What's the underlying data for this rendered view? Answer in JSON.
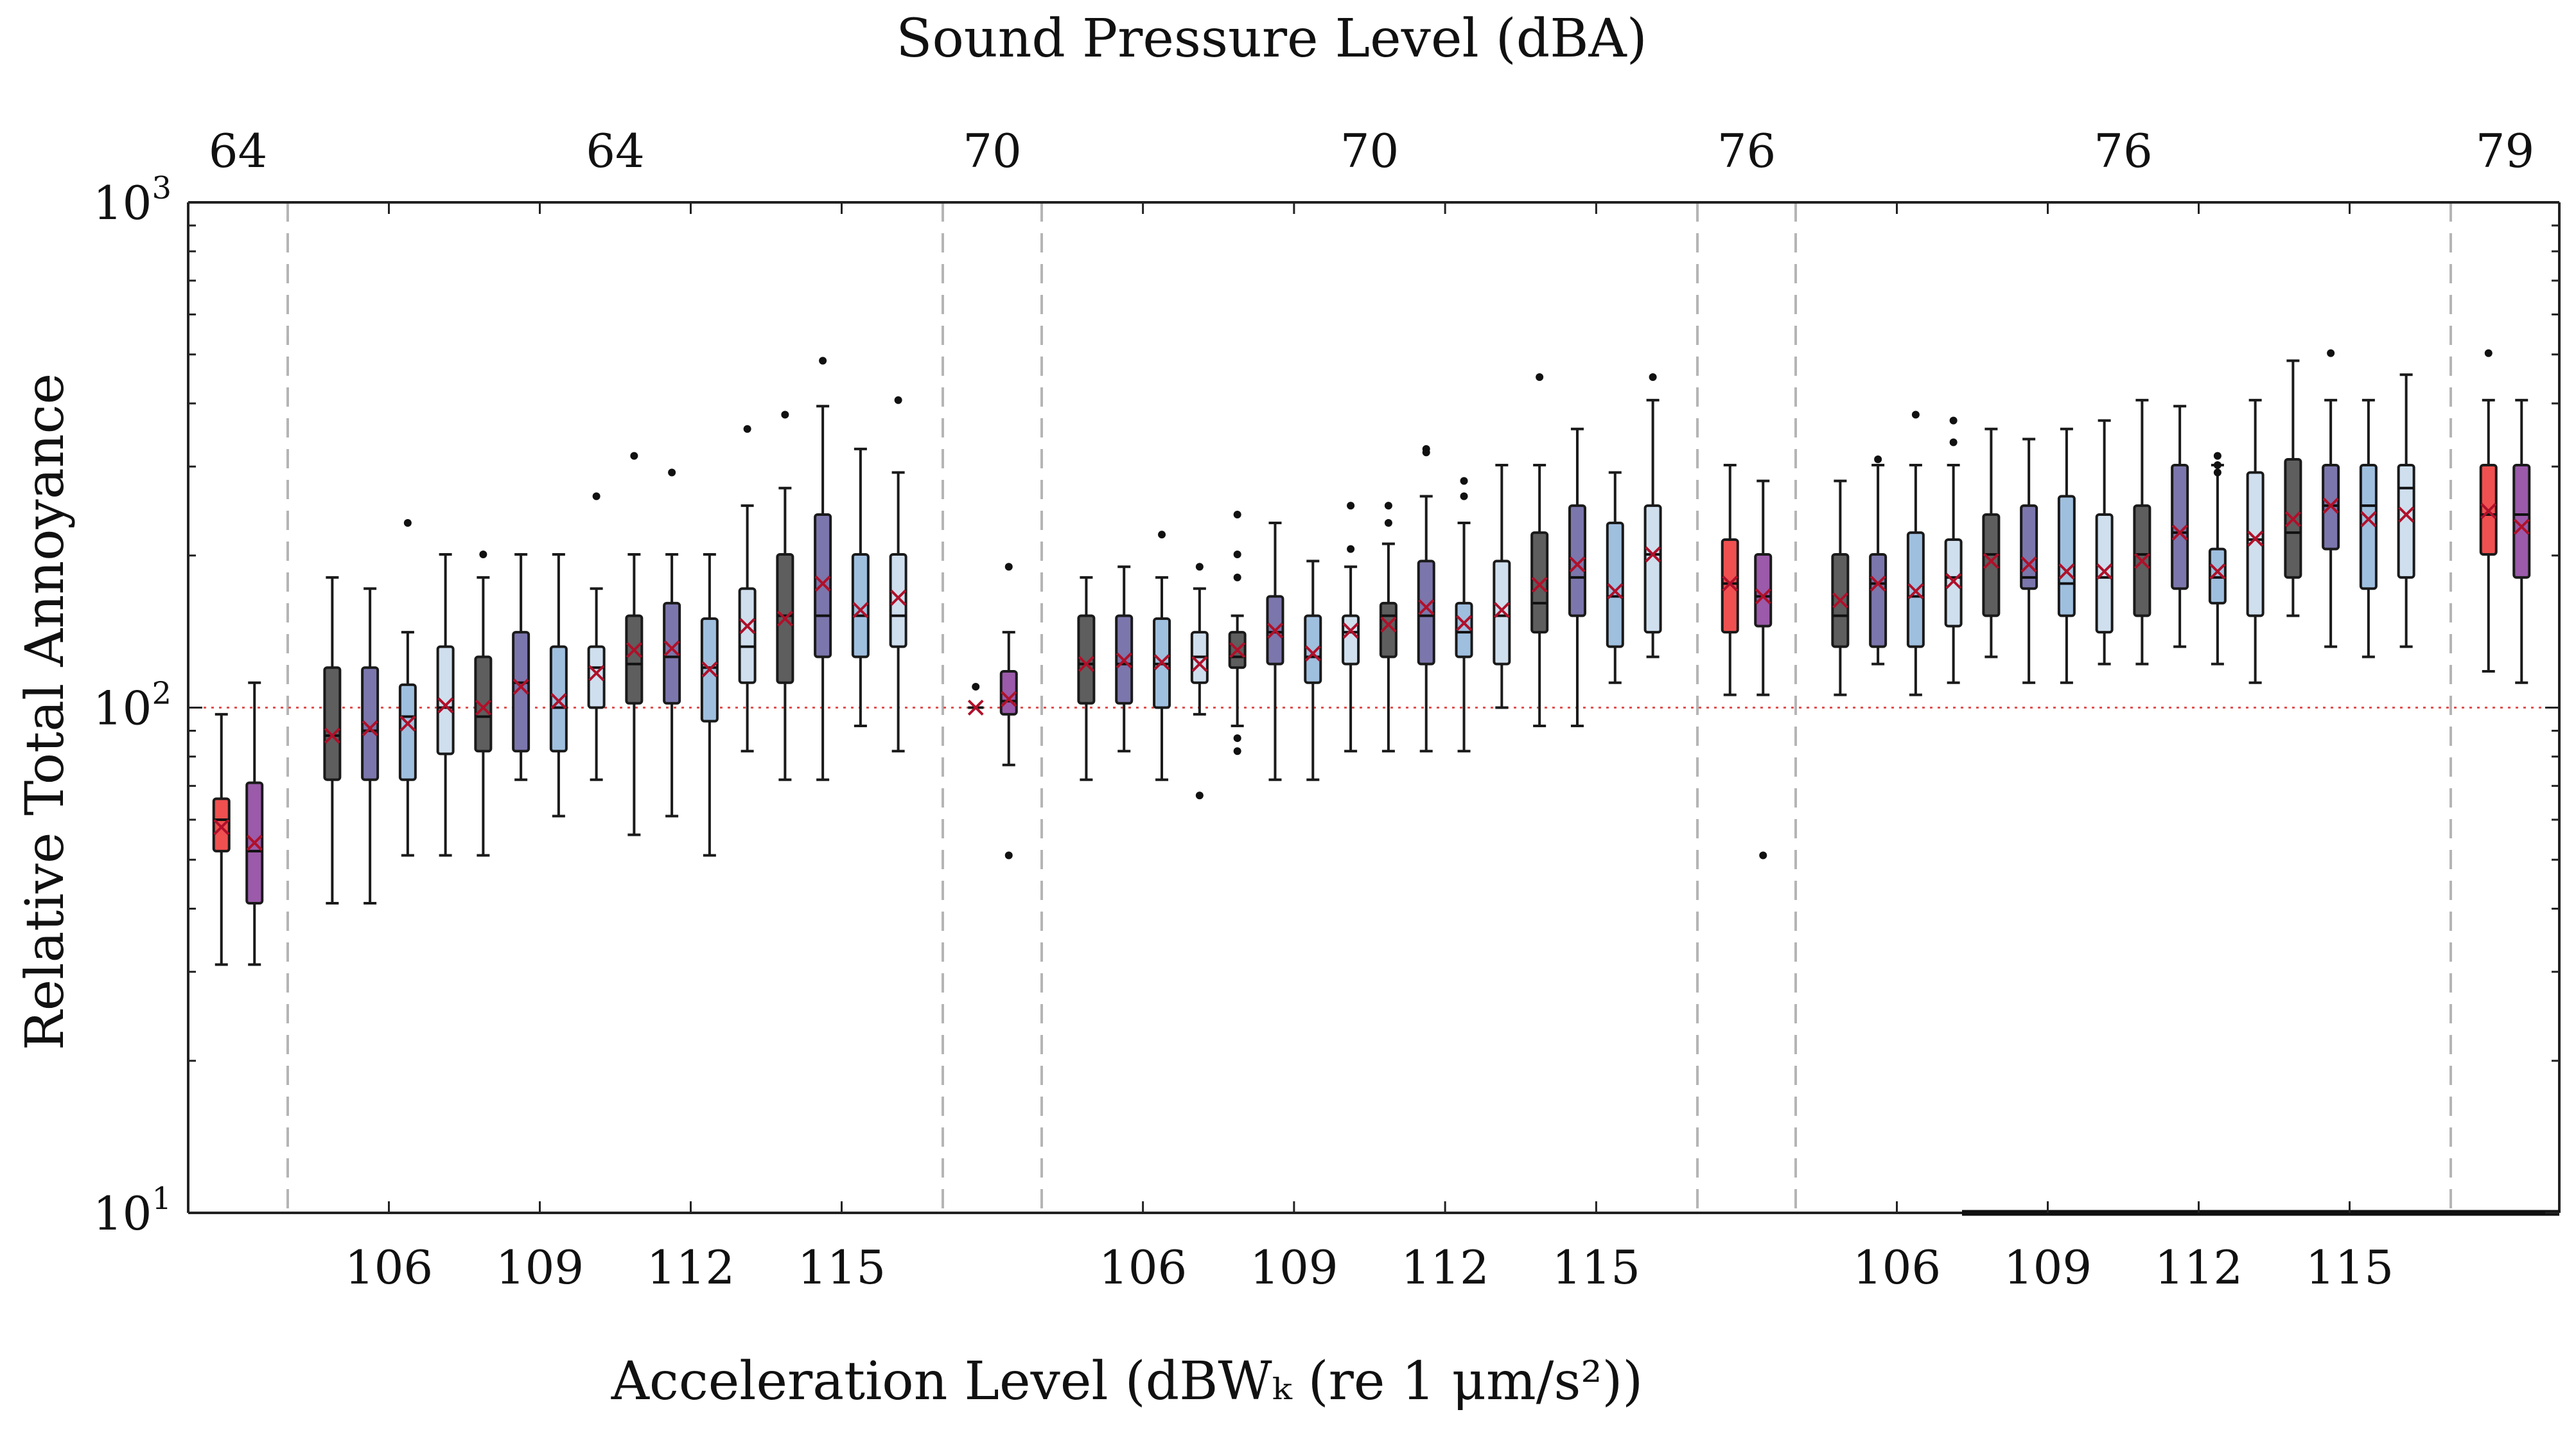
{
  "chart_data": {
    "type": "box",
    "title": "Sound Pressure Level (dBA)",
    "xlabel": "Acceleration Level (dBWₖ (re 1 μm/s²))",
    "ylabel": "Relative Total Annoyance",
    "yscale": "log",
    "ylim": [
      10,
      1000
    ],
    "reference_value": 100,
    "yticks": [
      {
        "base": "10",
        "exp": "1"
      },
      {
        "base": "10",
        "exp": "2"
      },
      {
        "base": "10",
        "exp": "3"
      }
    ],
    "colors": {
      "red": "#f05050",
      "purple": "#9b5aaa",
      "dark_gray": "#5e5e5e",
      "slate": "#7b76ac",
      "light_blue": "#9fbfdf",
      "pale_blue": "#cfdfee",
      "mean_marker": "#b0102a",
      "reference_line": "#e05050"
    },
    "panels": [
      {
        "spl": "64",
        "kind": "noise_only",
        "slots": 2
      },
      {
        "spl": "64",
        "kind": "combined",
        "slots": 16,
        "vib_levels": [
          "106",
          "109",
          "112",
          "115"
        ]
      },
      {
        "spl": "70",
        "kind": "noise_only",
        "slots": 2
      },
      {
        "spl": "70",
        "kind": "combined",
        "slots": 16,
        "vib_levels": [
          "106",
          "109",
          "112",
          "115"
        ]
      },
      {
        "spl": "76",
        "kind": "noise_only",
        "slots": 2
      },
      {
        "spl": "76",
        "kind": "combined",
        "slots": 16,
        "vib_levels": [
          "106",
          "109",
          "112",
          "115"
        ]
      },
      {
        "spl": "79",
        "kind": "noise_only",
        "slots": 2
      }
    ],
    "boxes": [
      {
        "panel": 0,
        "slot": 0,
        "color": "red",
        "min": 31,
        "q1": 52,
        "median": 60,
        "q3": 66,
        "max": 97,
        "mean": 58
      },
      {
        "panel": 0,
        "slot": 1,
        "color": "purple",
        "min": 31,
        "q1": 41,
        "median": 52,
        "q3": 71,
        "max": 112,
        "mean": 54
      },
      {
        "panel": 1,
        "slot": 0,
        "color": "dark_gray",
        "min": 41,
        "q1": 72,
        "median": 88,
        "q3": 120,
        "max": 181,
        "mean": 88
      },
      {
        "panel": 1,
        "slot": 1,
        "color": "slate",
        "min": 41,
        "q1": 72,
        "median": 90,
        "q3": 120,
        "max": 172,
        "mean": 91
      },
      {
        "panel": 1,
        "slot": 2,
        "color": "light_blue",
        "min": 51,
        "q1": 72,
        "median": 96,
        "q3": 111,
        "max": 141,
        "mean": 93,
        "outliers": [
          232
        ]
      },
      {
        "panel": 1,
        "slot": 3,
        "color": "pale_blue",
        "min": 51,
        "q1": 81,
        "median": 100,
        "q3": 132,
        "max": 201,
        "mean": 101
      },
      {
        "panel": 1,
        "slot": 4,
        "color": "dark_gray",
        "min": 51,
        "q1": 82,
        "median": 96,
        "q3": 126,
        "max": 181,
        "mean": 100,
        "outliers": [
          201
        ]
      },
      {
        "panel": 1,
        "slot": 5,
        "color": "slate",
        "min": 72,
        "q1": 82,
        "median": 112,
        "q3": 141,
        "max": 201,
        "mean": 110
      },
      {
        "panel": 1,
        "slot": 6,
        "color": "light_blue",
        "min": 61,
        "q1": 82,
        "median": 100,
        "q3": 132,
        "max": 201,
        "mean": 103
      },
      {
        "panel": 1,
        "slot": 7,
        "color": "pale_blue",
        "min": 72,
        "q1": 100,
        "median": 120,
        "q3": 132,
        "max": 172,
        "mean": 117,
        "outliers": [
          262
        ]
      },
      {
        "panel": 1,
        "slot": 8,
        "color": "dark_gray",
        "min": 56,
        "q1": 102,
        "median": 122,
        "q3": 152,
        "max": 201,
        "mean": 130,
        "outliers": [
          315
        ]
      },
      {
        "panel": 1,
        "slot": 9,
        "color": "slate",
        "min": 61,
        "q1": 102,
        "median": 126,
        "q3": 161,
        "max": 201,
        "mean": 131,
        "outliers": [
          292
        ]
      },
      {
        "panel": 1,
        "slot": 10,
        "color": "light_blue",
        "min": 51,
        "q1": 94,
        "median": 120,
        "q3": 150,
        "max": 201,
        "mean": 119
      },
      {
        "panel": 1,
        "slot": 11,
        "color": "pale_blue",
        "min": 82,
        "q1": 112,
        "median": 132,
        "q3": 172,
        "max": 251,
        "mean": 145,
        "outliers": [
          356
        ]
      },
      {
        "panel": 1,
        "slot": 12,
        "color": "dark_gray",
        "min": 72,
        "q1": 112,
        "median": 152,
        "q3": 201,
        "max": 272,
        "mean": 150,
        "outliers": [
          380
        ]
      },
      {
        "panel": 1,
        "slot": 13,
        "color": "slate",
        "min": 72,
        "q1": 126,
        "median": 152,
        "q3": 241,
        "max": 395,
        "mean": 176,
        "outliers": [
          486
        ]
      },
      {
        "panel": 1,
        "slot": 14,
        "color": "light_blue",
        "min": 92,
        "q1": 126,
        "median": 152,
        "q3": 201,
        "max": 325,
        "mean": 156
      },
      {
        "panel": 1,
        "slot": 15,
        "color": "pale_blue",
        "min": 82,
        "q1": 132,
        "median": 152,
        "q3": 201,
        "max": 292,
        "mean": 165,
        "outliers": [
          406
        ]
      },
      {
        "panel": 2,
        "slot": 0,
        "color": "red",
        "min": 100,
        "q1": 100,
        "median": 100,
        "q3": 100,
        "max": 100,
        "mean": 100,
        "outliers": [
          110
        ]
      },
      {
        "panel": 2,
        "slot": 1,
        "color": "purple",
        "min": 77,
        "q1": 97,
        "median": 103,
        "q3": 118,
        "max": 141,
        "mean": 104,
        "outliers": [
          190,
          51
        ]
      },
      {
        "panel": 3,
        "slot": 0,
        "color": "dark_gray",
        "min": 72,
        "q1": 102,
        "median": 122,
        "q3": 152,
        "max": 181,
        "mean": 122
      },
      {
        "panel": 3,
        "slot": 1,
        "color": "slate",
        "min": 82,
        "q1": 102,
        "median": 122,
        "q3": 152,
        "max": 190,
        "mean": 124
      },
      {
        "panel": 3,
        "slot": 2,
        "color": "light_blue",
        "min": 72,
        "q1": 100,
        "median": 122,
        "q3": 150,
        "max": 181,
        "mean": 123,
        "outliers": [
          220
        ]
      },
      {
        "panel": 3,
        "slot": 3,
        "color": "pale_blue",
        "min": 97,
        "q1": 112,
        "median": 126,
        "q3": 141,
        "max": 172,
        "mean": 122,
        "outliers": [
          190,
          67
        ]
      },
      {
        "panel": 3,
        "slot": 4,
        "color": "dark_gray",
        "min": 92,
        "q1": 120,
        "median": 126,
        "q3": 141,
        "max": 152,
        "mean": 130,
        "outliers": [
          241,
          201,
          181,
          87,
          82
        ]
      },
      {
        "panel": 3,
        "slot": 5,
        "color": "slate",
        "min": 72,
        "q1": 122,
        "median": 141,
        "q3": 166,
        "max": 232,
        "mean": 142
      },
      {
        "panel": 3,
        "slot": 6,
        "color": "light_blue",
        "min": 72,
        "q1": 112,
        "median": 126,
        "q3": 152,
        "max": 195,
        "mean": 128
      },
      {
        "panel": 3,
        "slot": 7,
        "color": "pale_blue",
        "min": 82,
        "q1": 122,
        "median": 141,
        "q3": 152,
        "max": 190,
        "mean": 142,
        "outliers": [
          251,
          206
        ]
      },
      {
        "panel": 3,
        "slot": 8,
        "color": "dark_gray",
        "min": 82,
        "q1": 126,
        "median": 152,
        "q3": 161,
        "max": 211,
        "mean": 146,
        "outliers": [
          251,
          232
        ]
      },
      {
        "panel": 3,
        "slot": 9,
        "color": "slate",
        "min": 82,
        "q1": 122,
        "median": 152,
        "q3": 195,
        "max": 262,
        "mean": 158,
        "outliers": [
          325,
          320
        ]
      },
      {
        "panel": 3,
        "slot": 10,
        "color": "light_blue",
        "min": 82,
        "q1": 126,
        "median": 141,
        "q3": 161,
        "max": 232,
        "mean": 147,
        "outliers": [
          281,
          262
        ]
      },
      {
        "panel": 3,
        "slot": 11,
        "color": "pale_blue",
        "min": 100,
        "q1": 122,
        "median": 152,
        "q3": 195,
        "max": 302,
        "mean": 156
      },
      {
        "panel": 3,
        "slot": 12,
        "color": "dark_gray",
        "min": 92,
        "q1": 141,
        "median": 161,
        "q3": 222,
        "max": 302,
        "mean": 175,
        "outliers": [
          451
        ]
      },
      {
        "panel": 3,
        "slot": 13,
        "color": "slate",
        "min": 92,
        "q1": 152,
        "median": 181,
        "q3": 251,
        "max": 356,
        "mean": 192
      },
      {
        "panel": 3,
        "slot": 14,
        "color": "light_blue",
        "min": 112,
        "q1": 132,
        "median": 166,
        "q3": 232,
        "max": 292,
        "mean": 170
      },
      {
        "panel": 3,
        "slot": 15,
        "color": "pale_blue",
        "min": 126,
        "q1": 141,
        "median": 201,
        "q3": 251,
        "max": 406,
        "mean": 201,
        "outliers": [
          451
        ]
      },
      {
        "panel": 4,
        "slot": 0,
        "color": "red",
        "min": 106,
        "q1": 141,
        "median": 176,
        "q3": 215,
        "max": 302,
        "mean": 176
      },
      {
        "panel": 4,
        "slot": 1,
        "color": "purple",
        "min": 106,
        "q1": 145,
        "median": 166,
        "q3": 201,
        "max": 281,
        "mean": 166,
        "outliers": [
          51
        ]
      },
      {
        "panel": 5,
        "slot": 0,
        "color": "dark_gray",
        "min": 106,
        "q1": 132,
        "median": 152,
        "q3": 201,
        "max": 281,
        "mean": 163
      },
      {
        "panel": 5,
        "slot": 1,
        "color": "slate",
        "min": 122,
        "q1": 132,
        "median": 176,
        "q3": 201,
        "max": 302,
        "mean": 176,
        "outliers": [
          310
        ]
      },
      {
        "panel": 5,
        "slot": 2,
        "color": "light_blue",
        "min": 106,
        "q1": 132,
        "median": 166,
        "q3": 222,
        "max": 302,
        "mean": 170,
        "outliers": [
          380
        ]
      },
      {
        "panel": 5,
        "slot": 3,
        "color": "pale_blue",
        "min": 112,
        "q1": 145,
        "median": 181,
        "q3": 215,
        "max": 302,
        "mean": 178,
        "outliers": [
          370,
          335
        ]
      },
      {
        "panel": 5,
        "slot": 4,
        "color": "dark_gray",
        "min": 126,
        "q1": 152,
        "median": 201,
        "q3": 241,
        "max": 356,
        "mean": 195
      },
      {
        "panel": 5,
        "slot": 5,
        "color": "slate",
        "min": 112,
        "q1": 172,
        "median": 181,
        "q3": 251,
        "max": 340,
        "mean": 192
      },
      {
        "panel": 5,
        "slot": 6,
        "color": "light_blue",
        "min": 112,
        "q1": 152,
        "median": 176,
        "q3": 262,
        "max": 356,
        "mean": 186
      },
      {
        "panel": 5,
        "slot": 7,
        "color": "pale_blue",
        "min": 122,
        "q1": 141,
        "median": 181,
        "q3": 241,
        "max": 370,
        "mean": 186
      },
      {
        "panel": 5,
        "slot": 8,
        "color": "dark_gray",
        "min": 122,
        "q1": 152,
        "median": 201,
        "q3": 251,
        "max": 406,
        "mean": 195
      },
      {
        "panel": 5,
        "slot": 9,
        "color": "slate",
        "min": 132,
        "q1": 172,
        "median": 222,
        "q3": 302,
        "max": 395,
        "mean": 222
      },
      {
        "panel": 5,
        "slot": 10,
        "color": "light_blue",
        "min": 122,
        "q1": 161,
        "median": 181,
        "q3": 206,
        "max": 302,
        "mean": 186,
        "outliers": [
          315,
          302,
          292
        ]
      },
      {
        "panel": 5,
        "slot": 11,
        "color": "pale_blue",
        "min": 112,
        "q1": 152,
        "median": 215,
        "q3": 292,
        "max": 406,
        "mean": 216
      },
      {
        "panel": 5,
        "slot": 12,
        "color": "dark_gray",
        "min": 152,
        "q1": 181,
        "median": 222,
        "q3": 310,
        "max": 486,
        "mean": 236
      },
      {
        "panel": 5,
        "slot": 13,
        "color": "slate",
        "min": 132,
        "q1": 206,
        "median": 251,
        "q3": 302,
        "max": 406,
        "mean": 251,
        "outliers": [
          503
        ]
      },
      {
        "panel": 5,
        "slot": 14,
        "color": "light_blue",
        "min": 126,
        "q1": 172,
        "median": 251,
        "q3": 302,
        "max": 406,
        "mean": 236
      },
      {
        "panel": 5,
        "slot": 15,
        "color": "pale_blue",
        "min": 132,
        "q1": 181,
        "median": 272,
        "q3": 302,
        "max": 456,
        "mean": 241
      },
      {
        "panel": 6,
        "slot": 0,
        "color": "red",
        "min": 118,
        "q1": 201,
        "median": 241,
        "q3": 302,
        "max": 406,
        "mean": 245,
        "outliers": [
          503
        ]
      },
      {
        "panel": 6,
        "slot": 1,
        "color": "purple",
        "min": 112,
        "q1": 181,
        "median": 241,
        "q3": 302,
        "max": 406,
        "mean": 228
      }
    ]
  }
}
